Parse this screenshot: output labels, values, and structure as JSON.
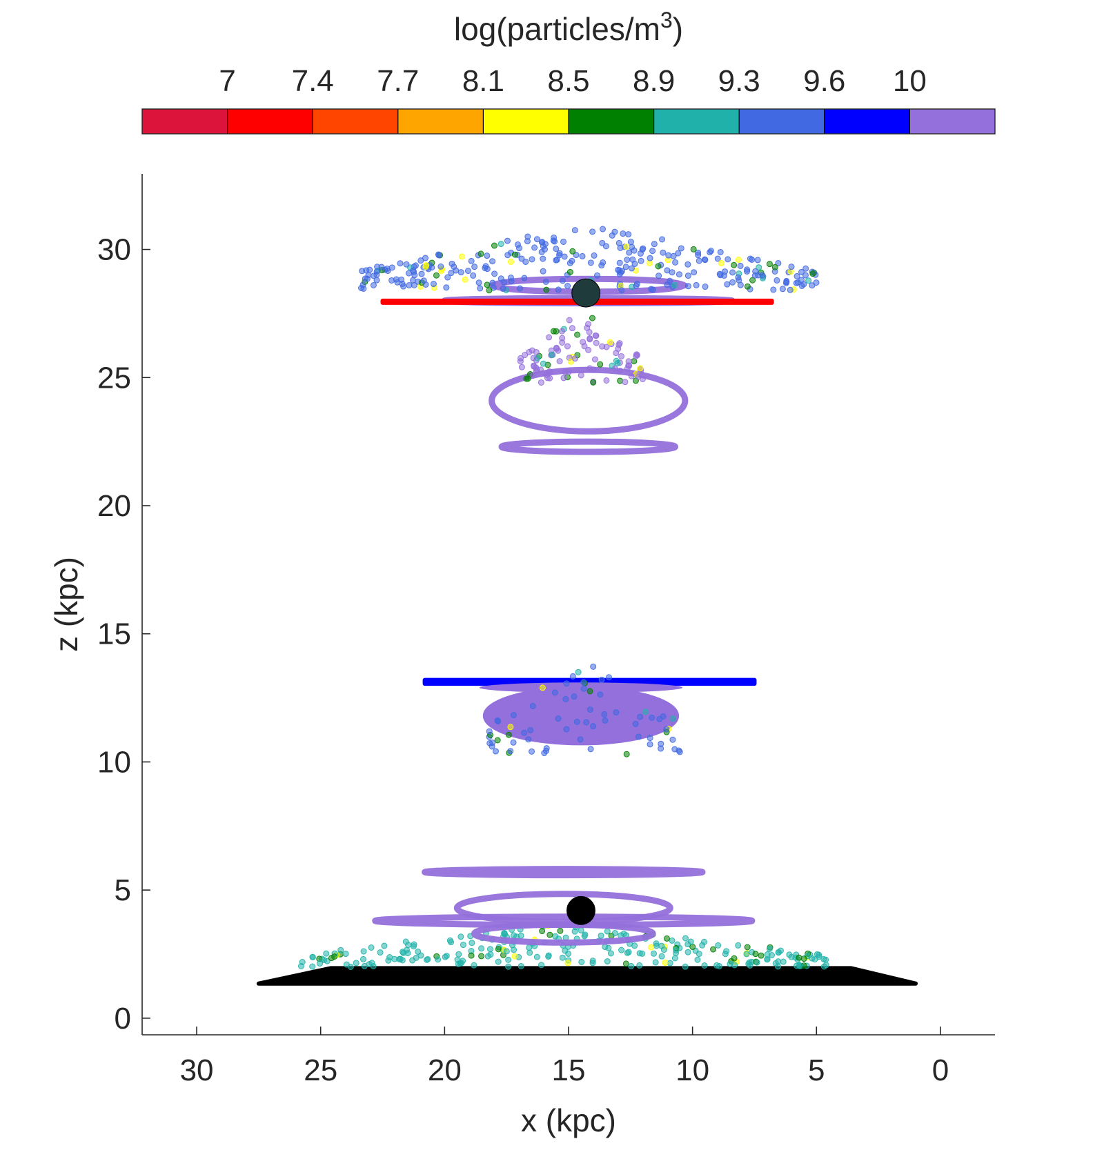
{
  "chart_data": {
    "type": "scatter",
    "title": "",
    "xlabel": "x (kpc)",
    "ylabel": "z (kpc)",
    "xlim": [
      32.2,
      -2.2
    ],
    "ylim": [
      -0.65,
      32.95
    ],
    "x_reversed": true,
    "grid": false,
    "x_ticks": [
      30,
      25,
      20,
      15,
      10,
      5,
      0
    ],
    "y_ticks": [
      0,
      5,
      10,
      15,
      20,
      25,
      30
    ],
    "colorbar": {
      "label_base": "log(particles/m",
      "label_sup": "3",
      "label_close": ")",
      "placement": "top",
      "tick_labels": [
        "7",
        "7.4",
        "7.7",
        "8.1",
        "8.5",
        "8.9",
        "9.3",
        "9.6",
        "10"
      ],
      "colors": [
        "#dc143c",
        "#ff0000",
        "#ff4500",
        "#ffa500",
        "#ffff00",
        "#008000",
        "#20b2aa",
        "#4169e1",
        "#0000ff",
        "#9370db"
      ]
    },
    "structures": [
      {
        "name": "",
        "kind": "disk",
        "color": "#000000",
        "x_range": [
          27.5,
          1.0
        ],
        "z_bottom": 1.35,
        "z_top": 1.95,
        "x_top_range": [
          24.6,
          3.6
        ]
      },
      {
        "name": "",
        "kind": "scatter-cloud",
        "color": "#20b2aa",
        "x_range": [
          25.8,
          4.5
        ],
        "z_range": [
          2.0,
          3.7
        ],
        "count": 260,
        "seed": 11
      },
      {
        "name": "",
        "kind": "loops",
        "color": "#9370db",
        "center_x": 15.2,
        "rings": [
          {
            "z": 5.7,
            "rx": 5.6,
            "rz": 0.12
          },
          {
            "z": 4.3,
            "rx": 4.3,
            "rz": 0.55
          },
          {
            "z": 3.8,
            "rx": 7.6,
            "rz": 0.16
          },
          {
            "z": 3.3,
            "rx": 3.6,
            "rz": 0.35
          }
        ]
      },
      {
        "name": "",
        "kind": "sphere",
        "color": "#000000",
        "x": 14.5,
        "z": 4.2,
        "r": 0.55
      },
      {
        "name": "",
        "kind": "disk",
        "color": "#0000ff",
        "x_range": [
          20.8,
          7.5
        ],
        "z_bottom": 13.05,
        "z_top": 13.2,
        "x_top_range": [
          20.8,
          7.5
        ]
      },
      {
        "name": "",
        "kind": "ellipse-blob",
        "color": "#9370db",
        "center_x": 14.5,
        "center_z": 11.8,
        "rx": 3.9,
        "rz": 1.1
      },
      {
        "name": "",
        "kind": "scatter-cloud",
        "color": "#4169e1",
        "x_range": [
          18.5,
          10.5
        ],
        "z_range": [
          10.3,
          14.3
        ],
        "count": 70,
        "seed": 23
      },
      {
        "name": "",
        "kind": "loops",
        "color": "#9370db",
        "center_x": 14.2,
        "rings": [
          {
            "z": 22.3,
            "rx": 3.5,
            "rz": 0.2
          },
          {
            "z": 24.1,
            "rx": 3.9,
            "rz": 1.2
          },
          {
            "z": 28.6,
            "rx": 3.9,
            "rz": 0.25
          },
          {
            "z": 28.0,
            "rx": 5.8,
            "rz": 0.1
          }
        ]
      },
      {
        "name": "",
        "kind": "scatter-cloud",
        "color": "#9370db",
        "x_range": [
          17.0,
          12.0
        ],
        "z_range": [
          24.8,
          27.8
        ],
        "count": 110,
        "seed": 31
      },
      {
        "name": "",
        "kind": "scatter-cloud",
        "color": "#4169e1",
        "x_range": [
          23.5,
          5.0
        ],
        "z_range": [
          28.4,
          31.0
        ],
        "count": 300,
        "seed": 47
      },
      {
        "name": "",
        "kind": "disk",
        "color": "#ff0000",
        "x_range": [
          22.5,
          6.8
        ],
        "z_bottom": 27.92,
        "z_top": 28.0,
        "x_top_range": [
          22.5,
          6.8
        ]
      },
      {
        "name": "",
        "kind": "sphere",
        "color": "#1f3b3b",
        "x": 14.3,
        "z": 28.3,
        "r": 0.55
      }
    ]
  }
}
